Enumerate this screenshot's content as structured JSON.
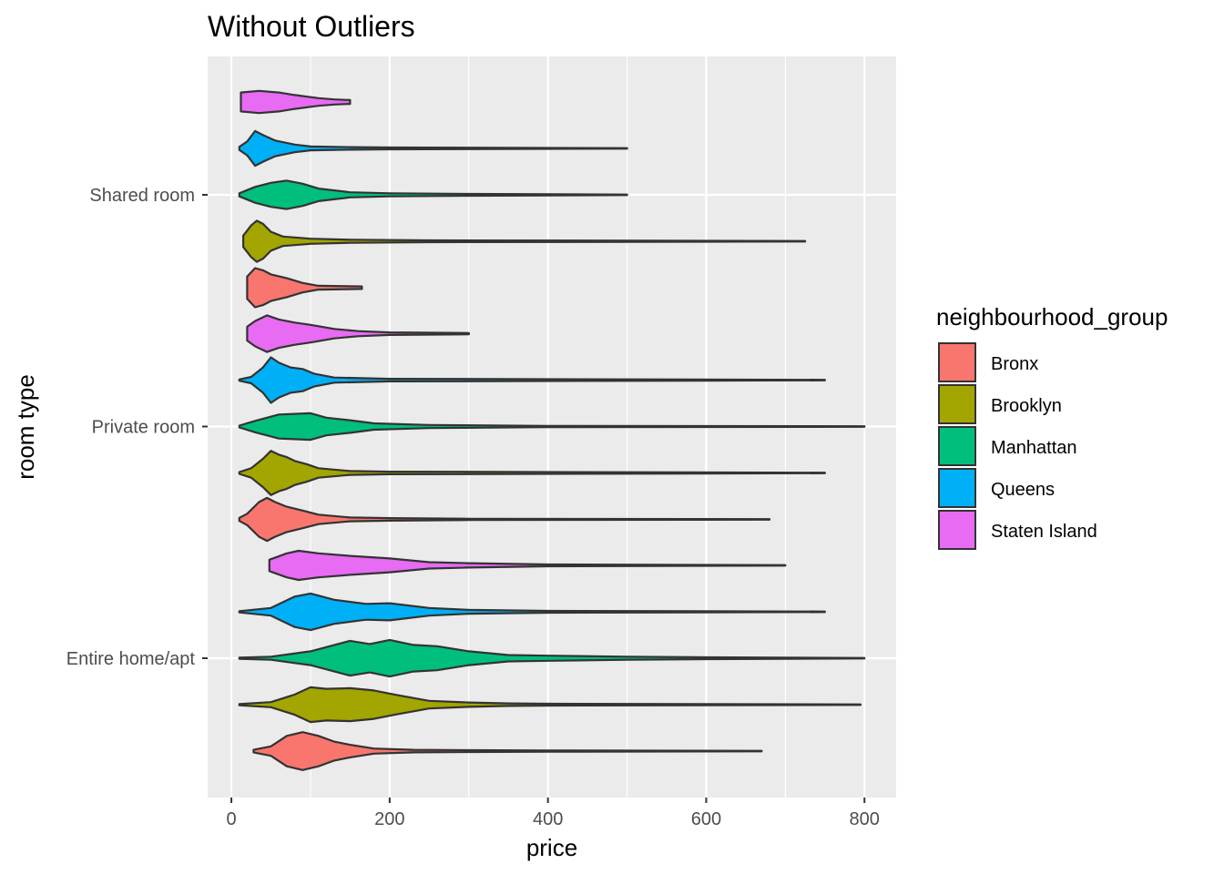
{
  "chart_data": {
    "type": "violin",
    "title": "Without Outliers",
    "xlabel": "price",
    "ylabel": "room type",
    "xlim": [
      -30,
      840
    ],
    "x_ticks": [
      0,
      200,
      400,
      600,
      800
    ],
    "x_minor_ticks": [
      100,
      300,
      500,
      700
    ],
    "categories": [
      "Entire home/apt",
      "Private room",
      "Shared room"
    ],
    "grid": true,
    "legend": {
      "title": "neighbourhood_group",
      "position": "right",
      "entries": [
        {
          "name": "Bronx",
          "color": "#F8766D"
        },
        {
          "name": "Brooklyn",
          "color": "#A3A500"
        },
        {
          "name": "Manhattan",
          "color": "#00BF7D"
        },
        {
          "name": "Queens",
          "color": "#00B0F6"
        },
        {
          "name": "Staten Island",
          "color": "#E76BF3"
        }
      ]
    },
    "series": [
      {
        "category": "Entire home/apt",
        "group": "Bronx",
        "min": 28,
        "max": 670,
        "density": [
          [
            28,
            0.04
          ],
          [
            50,
            0.15
          ],
          [
            70,
            0.48
          ],
          [
            90,
            0.6
          ],
          [
            110,
            0.48
          ],
          [
            130,
            0.3
          ],
          [
            150,
            0.2
          ],
          [
            180,
            0.08
          ],
          [
            230,
            0.04
          ],
          [
            300,
            0.03
          ],
          [
            400,
            0.02
          ],
          [
            670,
            0.01
          ]
        ]
      },
      {
        "category": "Entire home/apt",
        "group": "Brooklyn",
        "min": 10,
        "max": 795,
        "density": [
          [
            10,
            0.02
          ],
          [
            50,
            0.08
          ],
          [
            80,
            0.32
          ],
          [
            100,
            0.55
          ],
          [
            120,
            0.5
          ],
          [
            150,
            0.52
          ],
          [
            180,
            0.45
          ],
          [
            210,
            0.3
          ],
          [
            250,
            0.12
          ],
          [
            300,
            0.07
          ],
          [
            350,
            0.04
          ],
          [
            400,
            0.03
          ],
          [
            795,
            0.01
          ]
        ]
      },
      {
        "category": "Entire home/apt",
        "group": "Manhattan",
        "min": 10,
        "max": 800,
        "density": [
          [
            10,
            0.02
          ],
          [
            50,
            0.05
          ],
          [
            100,
            0.22
          ],
          [
            150,
            0.55
          ],
          [
            175,
            0.45
          ],
          [
            200,
            0.58
          ],
          [
            230,
            0.42
          ],
          [
            260,
            0.38
          ],
          [
            300,
            0.22
          ],
          [
            350,
            0.1
          ],
          [
            400,
            0.08
          ],
          [
            500,
            0.05
          ],
          [
            600,
            0.03
          ],
          [
            800,
            0.01
          ]
        ]
      },
      {
        "category": "Entire home/apt",
        "group": "Queens",
        "min": 10,
        "max": 750,
        "density": [
          [
            10,
            0.02
          ],
          [
            50,
            0.12
          ],
          [
            80,
            0.48
          ],
          [
            100,
            0.58
          ],
          [
            130,
            0.38
          ],
          [
            170,
            0.25
          ],
          [
            200,
            0.27
          ],
          [
            250,
            0.12
          ],
          [
            300,
            0.06
          ],
          [
            400,
            0.03
          ],
          [
            750,
            0.01
          ]
        ]
      },
      {
        "category": "Entire home/apt",
        "group": "Staten Island",
        "min": 48,
        "max": 700,
        "density": [
          [
            48,
            0.18
          ],
          [
            70,
            0.38
          ],
          [
            85,
            0.46
          ],
          [
            110,
            0.38
          ],
          [
            150,
            0.3
          ],
          [
            200,
            0.22
          ],
          [
            250,
            0.1
          ],
          [
            300,
            0.07
          ],
          [
            400,
            0.03
          ],
          [
            700,
            0.01
          ]
        ]
      },
      {
        "category": "Private room",
        "group": "Bronx",
        "min": 10,
        "max": 680,
        "density": [
          [
            10,
            0.05
          ],
          [
            20,
            0.18
          ],
          [
            35,
            0.55
          ],
          [
            45,
            0.68
          ],
          [
            55,
            0.55
          ],
          [
            70,
            0.4
          ],
          [
            90,
            0.28
          ],
          [
            110,
            0.15
          ],
          [
            150,
            0.06
          ],
          [
            200,
            0.04
          ],
          [
            300,
            0.02
          ],
          [
            680,
            0.01
          ]
        ]
      },
      {
        "category": "Private room",
        "group": "Brooklyn",
        "min": 10,
        "max": 750,
        "density": [
          [
            10,
            0.03
          ],
          [
            25,
            0.15
          ],
          [
            40,
            0.45
          ],
          [
            50,
            0.7
          ],
          [
            60,
            0.58
          ],
          [
            70,
            0.5
          ],
          [
            80,
            0.38
          ],
          [
            95,
            0.28
          ],
          [
            110,
            0.15
          ],
          [
            150,
            0.06
          ],
          [
            200,
            0.04
          ],
          [
            750,
            0.01
          ]
        ]
      },
      {
        "category": "Private room",
        "group": "Manhattan",
        "min": 10,
        "max": 800,
        "density": [
          [
            10,
            0.03
          ],
          [
            30,
            0.18
          ],
          [
            60,
            0.38
          ],
          [
            80,
            0.4
          ],
          [
            100,
            0.42
          ],
          [
            120,
            0.28
          ],
          [
            150,
            0.2
          ],
          [
            180,
            0.1
          ],
          [
            250,
            0.05
          ],
          [
            400,
            0.02
          ],
          [
            800,
            0.01
          ]
        ]
      },
      {
        "category": "Private room",
        "group": "Queens",
        "min": 10,
        "max": 750,
        "density": [
          [
            10,
            0.02
          ],
          [
            25,
            0.1
          ],
          [
            40,
            0.4
          ],
          [
            50,
            0.72
          ],
          [
            60,
            0.55
          ],
          [
            75,
            0.4
          ],
          [
            90,
            0.35
          ],
          [
            105,
            0.2
          ],
          [
            130,
            0.08
          ],
          [
            200,
            0.04
          ],
          [
            750,
            0.01
          ]
        ]
      },
      {
        "category": "Private room",
        "group": "Staten Island",
        "min": 20,
        "max": 300,
        "density": [
          [
            20,
            0.22
          ],
          [
            30,
            0.4
          ],
          [
            45,
            0.58
          ],
          [
            60,
            0.45
          ],
          [
            80,
            0.35
          ],
          [
            100,
            0.28
          ],
          [
            130,
            0.15
          ],
          [
            160,
            0.08
          ],
          [
            200,
            0.04
          ],
          [
            300,
            0.02
          ]
        ]
      },
      {
        "category": "Shared room",
        "group": "Bronx",
        "min": 20,
        "max": 165,
        "density": [
          [
            20,
            0.35
          ],
          [
            30,
            0.62
          ],
          [
            40,
            0.55
          ],
          [
            50,
            0.42
          ],
          [
            70,
            0.3
          ],
          [
            90,
            0.15
          ],
          [
            110,
            0.06
          ],
          [
            165,
            0.04
          ]
        ]
      },
      {
        "category": "Shared room",
        "group": "Brooklyn",
        "min": 15,
        "max": 725,
        "density": [
          [
            15,
            0.18
          ],
          [
            25,
            0.5
          ],
          [
            32,
            0.65
          ],
          [
            40,
            0.55
          ],
          [
            50,
            0.3
          ],
          [
            65,
            0.15
          ],
          [
            100,
            0.08
          ],
          [
            150,
            0.05
          ],
          [
            250,
            0.03
          ],
          [
            725,
            0.01
          ]
        ]
      },
      {
        "category": "Shared room",
        "group": "Manhattan",
        "min": 10,
        "max": 500,
        "density": [
          [
            10,
            0.05
          ],
          [
            30,
            0.25
          ],
          [
            50,
            0.38
          ],
          [
            70,
            0.45
          ],
          [
            90,
            0.35
          ],
          [
            110,
            0.2
          ],
          [
            150,
            0.08
          ],
          [
            200,
            0.05
          ],
          [
            300,
            0.03
          ],
          [
            500,
            0.01
          ]
        ]
      },
      {
        "category": "Shared room",
        "group": "Queens",
        "min": 10,
        "max": 500,
        "density": [
          [
            10,
            0.05
          ],
          [
            20,
            0.22
          ],
          [
            30,
            0.55
          ],
          [
            40,
            0.42
          ],
          [
            55,
            0.25
          ],
          [
            80,
            0.12
          ],
          [
            100,
            0.06
          ],
          [
            150,
            0.04
          ],
          [
            200,
            0.03
          ],
          [
            500,
            0.01
          ]
        ]
      },
      {
        "category": "Shared room",
        "group": "Staten Island",
        "min": 12,
        "max": 150,
        "density": [
          [
            12,
            0.3
          ],
          [
            35,
            0.35
          ],
          [
            60,
            0.3
          ],
          [
            80,
            0.22
          ],
          [
            110,
            0.12
          ],
          [
            130,
            0.08
          ],
          [
            150,
            0.06
          ]
        ]
      }
    ]
  }
}
